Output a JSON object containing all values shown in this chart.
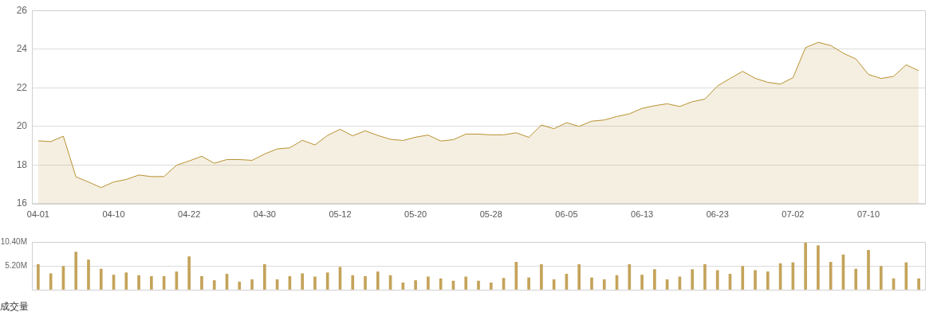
{
  "chart_data": [
    {
      "type": "area",
      "categories": [
        "04-01",
        null,
        null,
        null,
        null,
        null,
        "04-10",
        null,
        null,
        null,
        null,
        null,
        "04-22",
        null,
        null,
        null,
        null,
        null,
        "04-30",
        null,
        null,
        null,
        null,
        null,
        "05-12",
        null,
        null,
        null,
        null,
        null,
        "05-20",
        null,
        null,
        null,
        null,
        null,
        "05-28",
        null,
        null,
        null,
        null,
        null,
        "06-05",
        null,
        null,
        null,
        null,
        null,
        "06-13",
        null,
        null,
        null,
        null,
        null,
        "06-23",
        null,
        null,
        null,
        null,
        null,
        "07-02",
        null,
        null,
        null,
        null,
        null,
        "07-10",
        null,
        null,
        null,
        null
      ],
      "series": [
        {
          "color": "#b8912f",
          "values": [
            19.25,
            19.21,
            19.49,
            17.39,
            17.12,
            16.83,
            17.12,
            17.25,
            17.48,
            17.4,
            17.4,
            17.99,
            18.21,
            18.45,
            18.09,
            18.28,
            18.28,
            18.24,
            18.57,
            18.83,
            18.89,
            19.28,
            19.04,
            19.53,
            19.85,
            19.51,
            19.77,
            19.53,
            19.33,
            19.27,
            19.44,
            19.55,
            19.24,
            19.31,
            19.6,
            19.6,
            19.56,
            19.56,
            19.67,
            19.43,
            20.07,
            19.88,
            20.19,
            20.0,
            20.27,
            20.33,
            20.51,
            20.65,
            20.93,
            21.07,
            21.17,
            21.03,
            21.28,
            21.41,
            22.09,
            22.48,
            22.85,
            22.49,
            22.28,
            22.19,
            22.52,
            24.08,
            24.35,
            24.19,
            23.79,
            23.49,
            22.69,
            22.48,
            22.59,
            23.19,
            22.88
          ]
        }
      ],
      "ylim": [
        16,
        26
      ],
      "yticks": [
        16,
        18,
        20,
        22,
        24,
        26
      ],
      "grid": "y"
    },
    {
      "type": "bar",
      "xlabel": "成交量",
      "categories": [
        null,
        null,
        null,
        null,
        null,
        null,
        null,
        null,
        null,
        null,
        null,
        null,
        null,
        null,
        null,
        null,
        null,
        null,
        null,
        null,
        null,
        null,
        null,
        null,
        null,
        null,
        null,
        null,
        null,
        null,
        null,
        null,
        null,
        null,
        null,
        null,
        null,
        null,
        null,
        null,
        null,
        null,
        null,
        null,
        null,
        null,
        null,
        null,
        null,
        null,
        null,
        null,
        null,
        null,
        null,
        null,
        null,
        null,
        null,
        null,
        null,
        null,
        null,
        null,
        null,
        null,
        null,
        null,
        null,
        null,
        null
      ],
      "series": [
        {
          "color": "#c4a35a",
          "values": [
            5.5,
            3.5,
            5.1,
            8.2,
            6.5,
            4.5,
            3.2,
            3.7,
            3.1,
            2.9,
            2.9,
            3.9,
            7.2,
            2.9,
            2.0,
            3.4,
            1.7,
            2.2,
            5.5,
            2.2,
            2.9,
            3.5,
            2.8,
            3.7,
            4.9,
            3.1,
            2.9,
            3.9,
            3.1,
            1.5,
            2.0,
            2.8,
            2.4,
            1.9,
            2.8,
            1.9,
            1.5,
            2.5,
            6.0,
            2.6,
            5.5,
            2.2,
            3.4,
            5.5,
            2.6,
            2.2,
            3.1,
            5.5,
            3.2,
            4.4,
            2.2,
            2.8,
            4.4,
            5.5,
            4.2,
            3.4,
            5.1,
            4.2,
            3.9,
            5.7,
            5.9,
            10.4,
            9.6,
            6.0,
            7.6,
            4.5,
            8.6,
            5.1,
            2.4,
            5.9,
            2.4
          ]
        }
      ],
      "ylim": [
        0,
        10.4
      ],
      "yticks": [
        {
          "value": 0,
          "label": null
        },
        {
          "value": 5.2,
          "label": "5.20M"
        },
        {
          "value": 10.4,
          "label": "10.40M"
        }
      ],
      "grid": "y",
      "tick_labels": "y"
    }
  ]
}
